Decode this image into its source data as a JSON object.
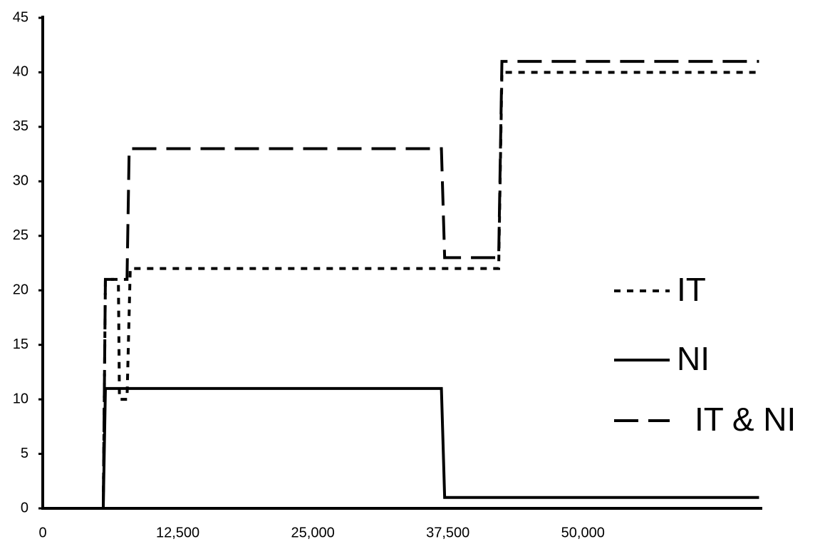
{
  "chart_data": {
    "type": "line",
    "xlim": [
      0,
      66600
    ],
    "ylim": [
      0,
      45
    ],
    "xticks": [
      0,
      {
        "value": 12500,
        "label": "12,500"
      },
      {
        "value": 25000,
        "label": "25,000"
      },
      {
        "value": 37500,
        "label": "37,500"
      },
      {
        "value": 50000,
        "label": "50,000"
      }
    ],
    "yticks": [
      0,
      5,
      10,
      15,
      20,
      25,
      30,
      35,
      40,
      45
    ],
    "grid": false,
    "legend": "right",
    "series": [
      {
        "name": "IT",
        "color": "#000000",
        "dash": "dotted",
        "x": [
          0,
          5600,
          5800,
          7000,
          7100,
          7800,
          8100,
          42200,
          42500,
          66300
        ],
        "values": [
          0,
          0,
          21,
          21,
          10,
          10,
          22,
          22,
          40,
          40
        ]
      },
      {
        "name": "NI",
        "color": "#000000",
        "dash": "solid",
        "x": [
          0,
          5600,
          5800,
          36900,
          37200,
          66300
        ],
        "values": [
          0,
          0,
          11,
          11,
          1,
          1
        ]
      },
      {
        "name": "IT & NI",
        "color": "#000000",
        "dash": "dashed",
        "x": [
          0,
          5600,
          5800,
          7800,
          8000,
          36900,
          37200,
          42200,
          42500,
          66300
        ],
        "values": [
          0,
          0,
          21,
          21,
          33,
          33,
          23,
          23,
          41,
          41
        ]
      }
    ]
  }
}
